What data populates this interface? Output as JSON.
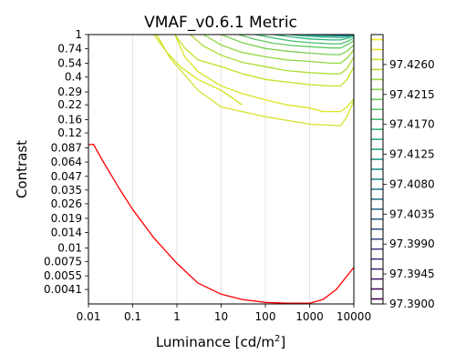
{
  "chart_data": {
    "type": "contour",
    "title": "VMAF_v0.6.1 Metric",
    "xlabel": "Luminance [cd/m",
    "xlabel_sup": "2",
    "xlabel_suffix": "]",
    "ylabel": "Contrast",
    "x_scale": "log",
    "y_scale": "log",
    "xlim": [
      0.01,
      10000
    ],
    "ylim": [
      0.003,
      1
    ],
    "grid": "vertical",
    "x_ticks": [
      {
        "value": 0.01,
        "label": "0.01"
      },
      {
        "value": 0.1,
        "label": "0.1"
      },
      {
        "value": 1,
        "label": "1"
      },
      {
        "value": 10,
        "label": "10"
      },
      {
        "value": 100,
        "label": "100"
      },
      {
        "value": 1000,
        "label": "1000"
      },
      {
        "value": 10000,
        "label": "10000"
      }
    ],
    "y_ticks": [
      {
        "value": 1,
        "label": "1"
      },
      {
        "value": 0.74,
        "label": "0.74"
      },
      {
        "value": 0.54,
        "label": "0.54"
      },
      {
        "value": 0.4,
        "label": "0.4"
      },
      {
        "value": 0.29,
        "label": "0.29"
      },
      {
        "value": 0.22,
        "label": "0.22"
      },
      {
        "value": 0.16,
        "label": "0.16"
      },
      {
        "value": 0.12,
        "label": "0.12"
      },
      {
        "value": 0.087,
        "label": "0.087"
      },
      {
        "value": 0.064,
        "label": "0.064"
      },
      {
        "value": 0.047,
        "label": "0.047"
      },
      {
        "value": 0.035,
        "label": "0.035"
      },
      {
        "value": 0.026,
        "label": "0.026"
      },
      {
        "value": 0.019,
        "label": "0.019"
      },
      {
        "value": 0.014,
        "label": "0.014"
      },
      {
        "value": 0.01,
        "label": "0.01"
      },
      {
        "value": 0.0075,
        "label": "0.0075"
      },
      {
        "value": 0.0055,
        "label": "0.0055"
      },
      {
        "value": 0.0041,
        "label": "0.0041"
      }
    ],
    "colorbar": {
      "min": 97.39,
      "max": 97.4305,
      "ticks": [
        {
          "value": 97.39,
          "label": "97.3900"
        },
        {
          "value": 97.3945,
          "label": "97.3945"
        },
        {
          "value": 97.399,
          "label": "97.3990"
        },
        {
          "value": 97.4035,
          "label": "97.4035"
        },
        {
          "value": 97.408,
          "label": "97.4080"
        },
        {
          "value": 97.4125,
          "label": "97.4125"
        },
        {
          "value": 97.417,
          "label": "97.4170"
        },
        {
          "value": 97.4215,
          "label": "97.4215"
        },
        {
          "value": 97.426,
          "label": "97.4260"
        }
      ],
      "levels": 27,
      "colormap": [
        "#440154",
        "#472d7b",
        "#3b528b",
        "#2c728e",
        "#21918c",
        "#28ae80",
        "#5ec962",
        "#addc30",
        "#fde725"
      ]
    },
    "threshold_line": {
      "color": "#ff0000",
      "points": [
        [
          0.01,
          0.093
        ],
        [
          0.013,
          0.094
        ],
        [
          0.02,
          0.068
        ],
        [
          0.05,
          0.036
        ],
        [
          0.1,
          0.023
        ],
        [
          0.3,
          0.0125
        ],
        [
          1,
          0.0072
        ],
        [
          3,
          0.0047
        ],
        [
          10,
          0.0037
        ],
        [
          30,
          0.0033
        ],
        [
          100,
          0.0031
        ],
        [
          300,
          0.00305
        ],
        [
          1000,
          0.00305
        ],
        [
          2000,
          0.0033
        ],
        [
          4000,
          0.0041
        ],
        [
          10000,
          0.0066
        ]
      ]
    },
    "contours": [
      {
        "color": "#d9e521",
        "points": [
          [
            0.9,
            1
          ],
          [
            1.5,
            0.62
          ],
          [
            3,
            0.45
          ],
          [
            10,
            0.33
          ],
          [
            30,
            0.28
          ],
          [
            100,
            0.245
          ],
          [
            300,
            0.22
          ],
          [
            1000,
            0.205
          ],
          [
            2000,
            0.19
          ],
          [
            5000,
            0.19
          ],
          [
            7000,
            0.21
          ],
          [
            10000,
            0.25
          ]
        ]
      },
      {
        "color": "#d4e21a",
        "points": [
          [
            0.3,
            1
          ],
          [
            0.6,
            0.68
          ],
          [
            1.2,
            0.5
          ],
          [
            3,
            0.38
          ],
          [
            10,
            0.3
          ],
          [
            30,
            0.22
          ]
        ]
      },
      {
        "color": "#d6e22b",
        "points": [
          [
            0.35,
            1
          ],
          [
            0.7,
            0.6
          ],
          [
            1.5,
            0.42
          ],
          [
            3,
            0.3
          ],
          [
            10,
            0.21
          ],
          [
            100,
            0.17
          ],
          [
            1000,
            0.145
          ],
          [
            5000,
            0.14
          ],
          [
            7000,
            0.17
          ],
          [
            10000,
            0.24
          ]
        ]
      },
      {
        "color": "#c5e021",
        "points": [
          [
            0.9,
            1
          ],
          [
            1.5,
            0.75
          ],
          [
            3,
            0.58
          ],
          [
            10,
            0.5
          ],
          [
            30,
            0.43
          ],
          [
            100,
            0.38
          ],
          [
            300,
            0.36
          ],
          [
            1000,
            0.34
          ],
          [
            3000,
            0.33
          ],
          [
            5000,
            0.33
          ],
          [
            7000,
            0.38
          ],
          [
            10000,
            0.5
          ]
        ]
      },
      {
        "color": "#addc30",
        "points": [
          [
            2,
            1
          ],
          [
            4,
            0.78
          ],
          [
            10,
            0.64
          ],
          [
            30,
            0.55
          ],
          [
            100,
            0.5
          ],
          [
            300,
            0.46
          ],
          [
            1000,
            0.44
          ],
          [
            3000,
            0.43
          ],
          [
            5000,
            0.43
          ],
          [
            7000,
            0.48
          ],
          [
            10000,
            0.62
          ]
        ]
      },
      {
        "color": "#93d741",
        "points": [
          [
            4,
            1
          ],
          [
            10,
            0.8
          ],
          [
            30,
            0.68
          ],
          [
            100,
            0.62
          ],
          [
            300,
            0.58
          ],
          [
            1000,
            0.56
          ],
          [
            3000,
            0.54
          ],
          [
            5000,
            0.54
          ],
          [
            7000,
            0.6
          ],
          [
            10000,
            0.72
          ]
        ]
      },
      {
        "color": "#7ad151",
        "points": [
          [
            10,
            1
          ],
          [
            30,
            0.84
          ],
          [
            100,
            0.74
          ],
          [
            300,
            0.7
          ],
          [
            1000,
            0.67
          ],
          [
            3000,
            0.65
          ],
          [
            5000,
            0.65
          ],
          [
            7000,
            0.7
          ],
          [
            10000,
            0.8
          ]
        ]
      },
      {
        "color": "#5ec962",
        "points": [
          [
            25,
            1
          ],
          [
            60,
            0.9
          ],
          [
            150,
            0.83
          ],
          [
            400,
            0.79
          ],
          [
            1000,
            0.77
          ],
          [
            3000,
            0.75
          ],
          [
            5000,
            0.75
          ],
          [
            7000,
            0.8
          ],
          [
            10000,
            0.88
          ]
        ]
      },
      {
        "color": "#44bf70",
        "points": [
          [
            60,
            1
          ],
          [
            150,
            0.93
          ],
          [
            400,
            0.87
          ],
          [
            1000,
            0.84
          ],
          [
            3000,
            0.82
          ],
          [
            5000,
            0.82
          ],
          [
            7000,
            0.86
          ],
          [
            10000,
            0.93
          ]
        ]
      },
      {
        "color": "#2fb47c",
        "points": [
          [
            150,
            1
          ],
          [
            400,
            0.95
          ],
          [
            1000,
            0.91
          ],
          [
            3000,
            0.89
          ],
          [
            5000,
            0.89
          ],
          [
            7000,
            0.92
          ],
          [
            10000,
            0.97
          ]
        ]
      },
      {
        "color": "#22a884",
        "points": [
          [
            350,
            1
          ],
          [
            800,
            0.97
          ],
          [
            2000,
            0.95
          ],
          [
            5000,
            0.94
          ],
          [
            7000,
            0.95
          ],
          [
            10000,
            0.99
          ]
        ]
      },
      {
        "color": "#1f9e89",
        "points": [
          [
            700,
            1
          ],
          [
            1500,
            0.985
          ],
          [
            4000,
            0.975
          ],
          [
            7000,
            0.975
          ],
          [
            10000,
            1
          ]
        ]
      },
      {
        "color": "#25848e",
        "points": [
          [
            1200,
            1
          ],
          [
            3000,
            0.99
          ],
          [
            7000,
            0.985
          ],
          [
            10000,
            1
          ]
        ]
      },
      {
        "color": "#2d708e",
        "points": [
          [
            2000,
            1
          ],
          [
            5000,
            0.995
          ],
          [
            10000,
            1
          ]
        ]
      },
      {
        "color": "#39568c",
        "points": [
          [
            3500,
            1
          ],
          [
            7000,
            0.997
          ],
          [
            10000,
            1
          ]
        ]
      },
      {
        "color": "#453781",
        "points": [
          [
            5000,
            1
          ],
          [
            8000,
            0.999
          ],
          [
            10000,
            1
          ]
        ]
      },
      {
        "color": "#481467",
        "points": [
          [
            7000,
            1
          ],
          [
            10000,
            1
          ]
        ]
      }
    ]
  }
}
